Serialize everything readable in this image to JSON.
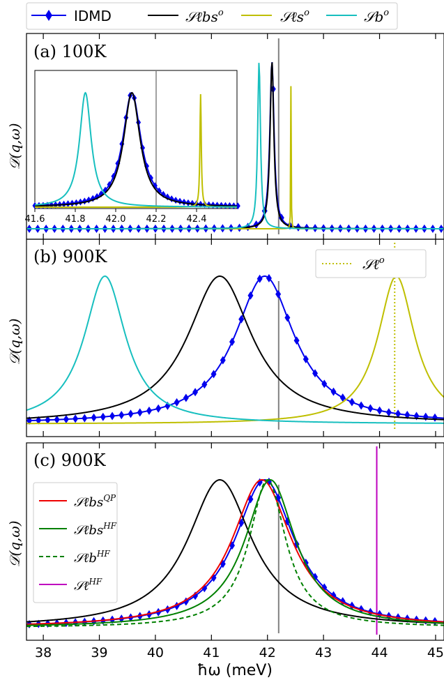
{
  "figure": {
    "xlabel": "ħω (meV)",
    "ylabel": "𝒟(q,ω)",
    "xlim": [
      37.7,
      45.15
    ],
    "xticks": [
      "38",
      "39",
      "40",
      "41",
      "42",
      "43",
      "44",
      "45"
    ]
  },
  "legend_top": [
    {
      "label": "IDMD",
      "color": "#0000ee",
      "style": "line-diamond"
    },
    {
      "label": "𝒮ℓbs",
      "sup": "o",
      "color": "#000000",
      "style": "line"
    },
    {
      "label": "𝒮ℓs",
      "sup": "o",
      "color": "#bfbf00",
      "style": "line"
    },
    {
      "label": "𝒮b",
      "sup": "o",
      "color": "#17bfbf",
      "style": "line"
    }
  ],
  "colors": {
    "idmd": "#0000ee",
    "lbs": "#000000",
    "ls": "#bfbf00",
    "b": "#17bfbf",
    "red": "#ee0000",
    "green": "#008000",
    "magenta": "#bf00bf",
    "vline": "#808080"
  },
  "chart_data": [
    {
      "type": "line",
      "panel_label": "(a) 100K",
      "xlim": [
        37.7,
        45.15
      ],
      "vline": 42.2,
      "series": [
        {
          "name": "IDMD",
          "kind": "lorentz",
          "x0": 42.08,
          "gamma": 0.045,
          "points": "diamond"
        },
        {
          "name": "𝒮ℓbs",
          "sup": "o",
          "kind": "lorentz",
          "x0": 42.08,
          "gamma": 0.04
        },
        {
          "name": "𝒮ℓs",
          "sup": "o",
          "kind": "lorentz",
          "x0": 42.42,
          "gamma": 0.004
        },
        {
          "name": "𝒮b",
          "sup": "o",
          "kind": "lorentz",
          "x0": 41.85,
          "gamma": 0.03
        }
      ],
      "inset": {
        "xlim": [
          41.6,
          42.6
        ],
        "xticks": [
          "41.6",
          "41.8",
          "42.0",
          "42.2",
          "42.4"
        ],
        "vline": 42.2
      }
    },
    {
      "type": "line",
      "panel_label": "(b) 900K",
      "xlim": [
        37.7,
        45.15
      ],
      "vline": 42.2,
      "vline_dotted": 44.27,
      "legend": [
        {
          "name": "𝒮ℓ",
          "sup": "o",
          "style": "dotted"
        }
      ],
      "series": [
        {
          "name": "IDMD",
          "kind": "lorentz",
          "x0": 41.95,
          "gamma": 0.65,
          "points": "diamond"
        },
        {
          "name": "𝒮ℓbs",
          "sup": "o",
          "kind": "lorentz",
          "x0": 41.15,
          "gamma": 0.7
        },
        {
          "name": "𝒮ℓs",
          "sup": "o",
          "kind": "lorentz",
          "x0": 44.3,
          "gamma": 0.4
        },
        {
          "name": "𝒮b",
          "sup": "o",
          "kind": "lorentz",
          "x0": 39.1,
          "gamma": 0.45
        }
      ]
    },
    {
      "type": "line",
      "panel_label": "(c) 900K",
      "xlim": [
        37.7,
        45.15
      ],
      "vline": 42.2,
      "vline_magenta": 43.95,
      "legend": [
        {
          "name": "𝒮ℓbs",
          "sup": "QP",
          "color": "#ee0000",
          "style": "solid"
        },
        {
          "name": "𝒮ℓbs",
          "sup": "HF",
          "color": "#008000",
          "style": "solid"
        },
        {
          "name": "𝒮ℓb",
          "sup": "HF",
          "color": "#008000",
          "style": "dashed"
        },
        {
          "name": "𝒮ℓ",
          "sup": "HF",
          "color": "#bf00bf",
          "style": "solid"
        }
      ],
      "series": [
        {
          "name": "IDMD",
          "kind": "lorentz",
          "x0": 41.95,
          "gamma": 0.65,
          "points": "diamond"
        },
        {
          "name": "𝒮ℓbs",
          "sup": "o",
          "kind": "lorentz",
          "x0": 41.15,
          "gamma": 0.7
        },
        {
          "name": "𝒮ℓbs",
          "sup": "QP",
          "kind": "lorentz",
          "x0": 41.9,
          "gamma": 0.65
        },
        {
          "name": "𝒮ℓbs",
          "sup": "HF",
          "kind": "lorentz",
          "x0": 42.05,
          "gamma": 0.55
        },
        {
          "name": "𝒮ℓb",
          "sup": "HF",
          "kind": "lorentz",
          "x0": 42.0,
          "gamma": 0.4
        }
      ]
    }
  ]
}
